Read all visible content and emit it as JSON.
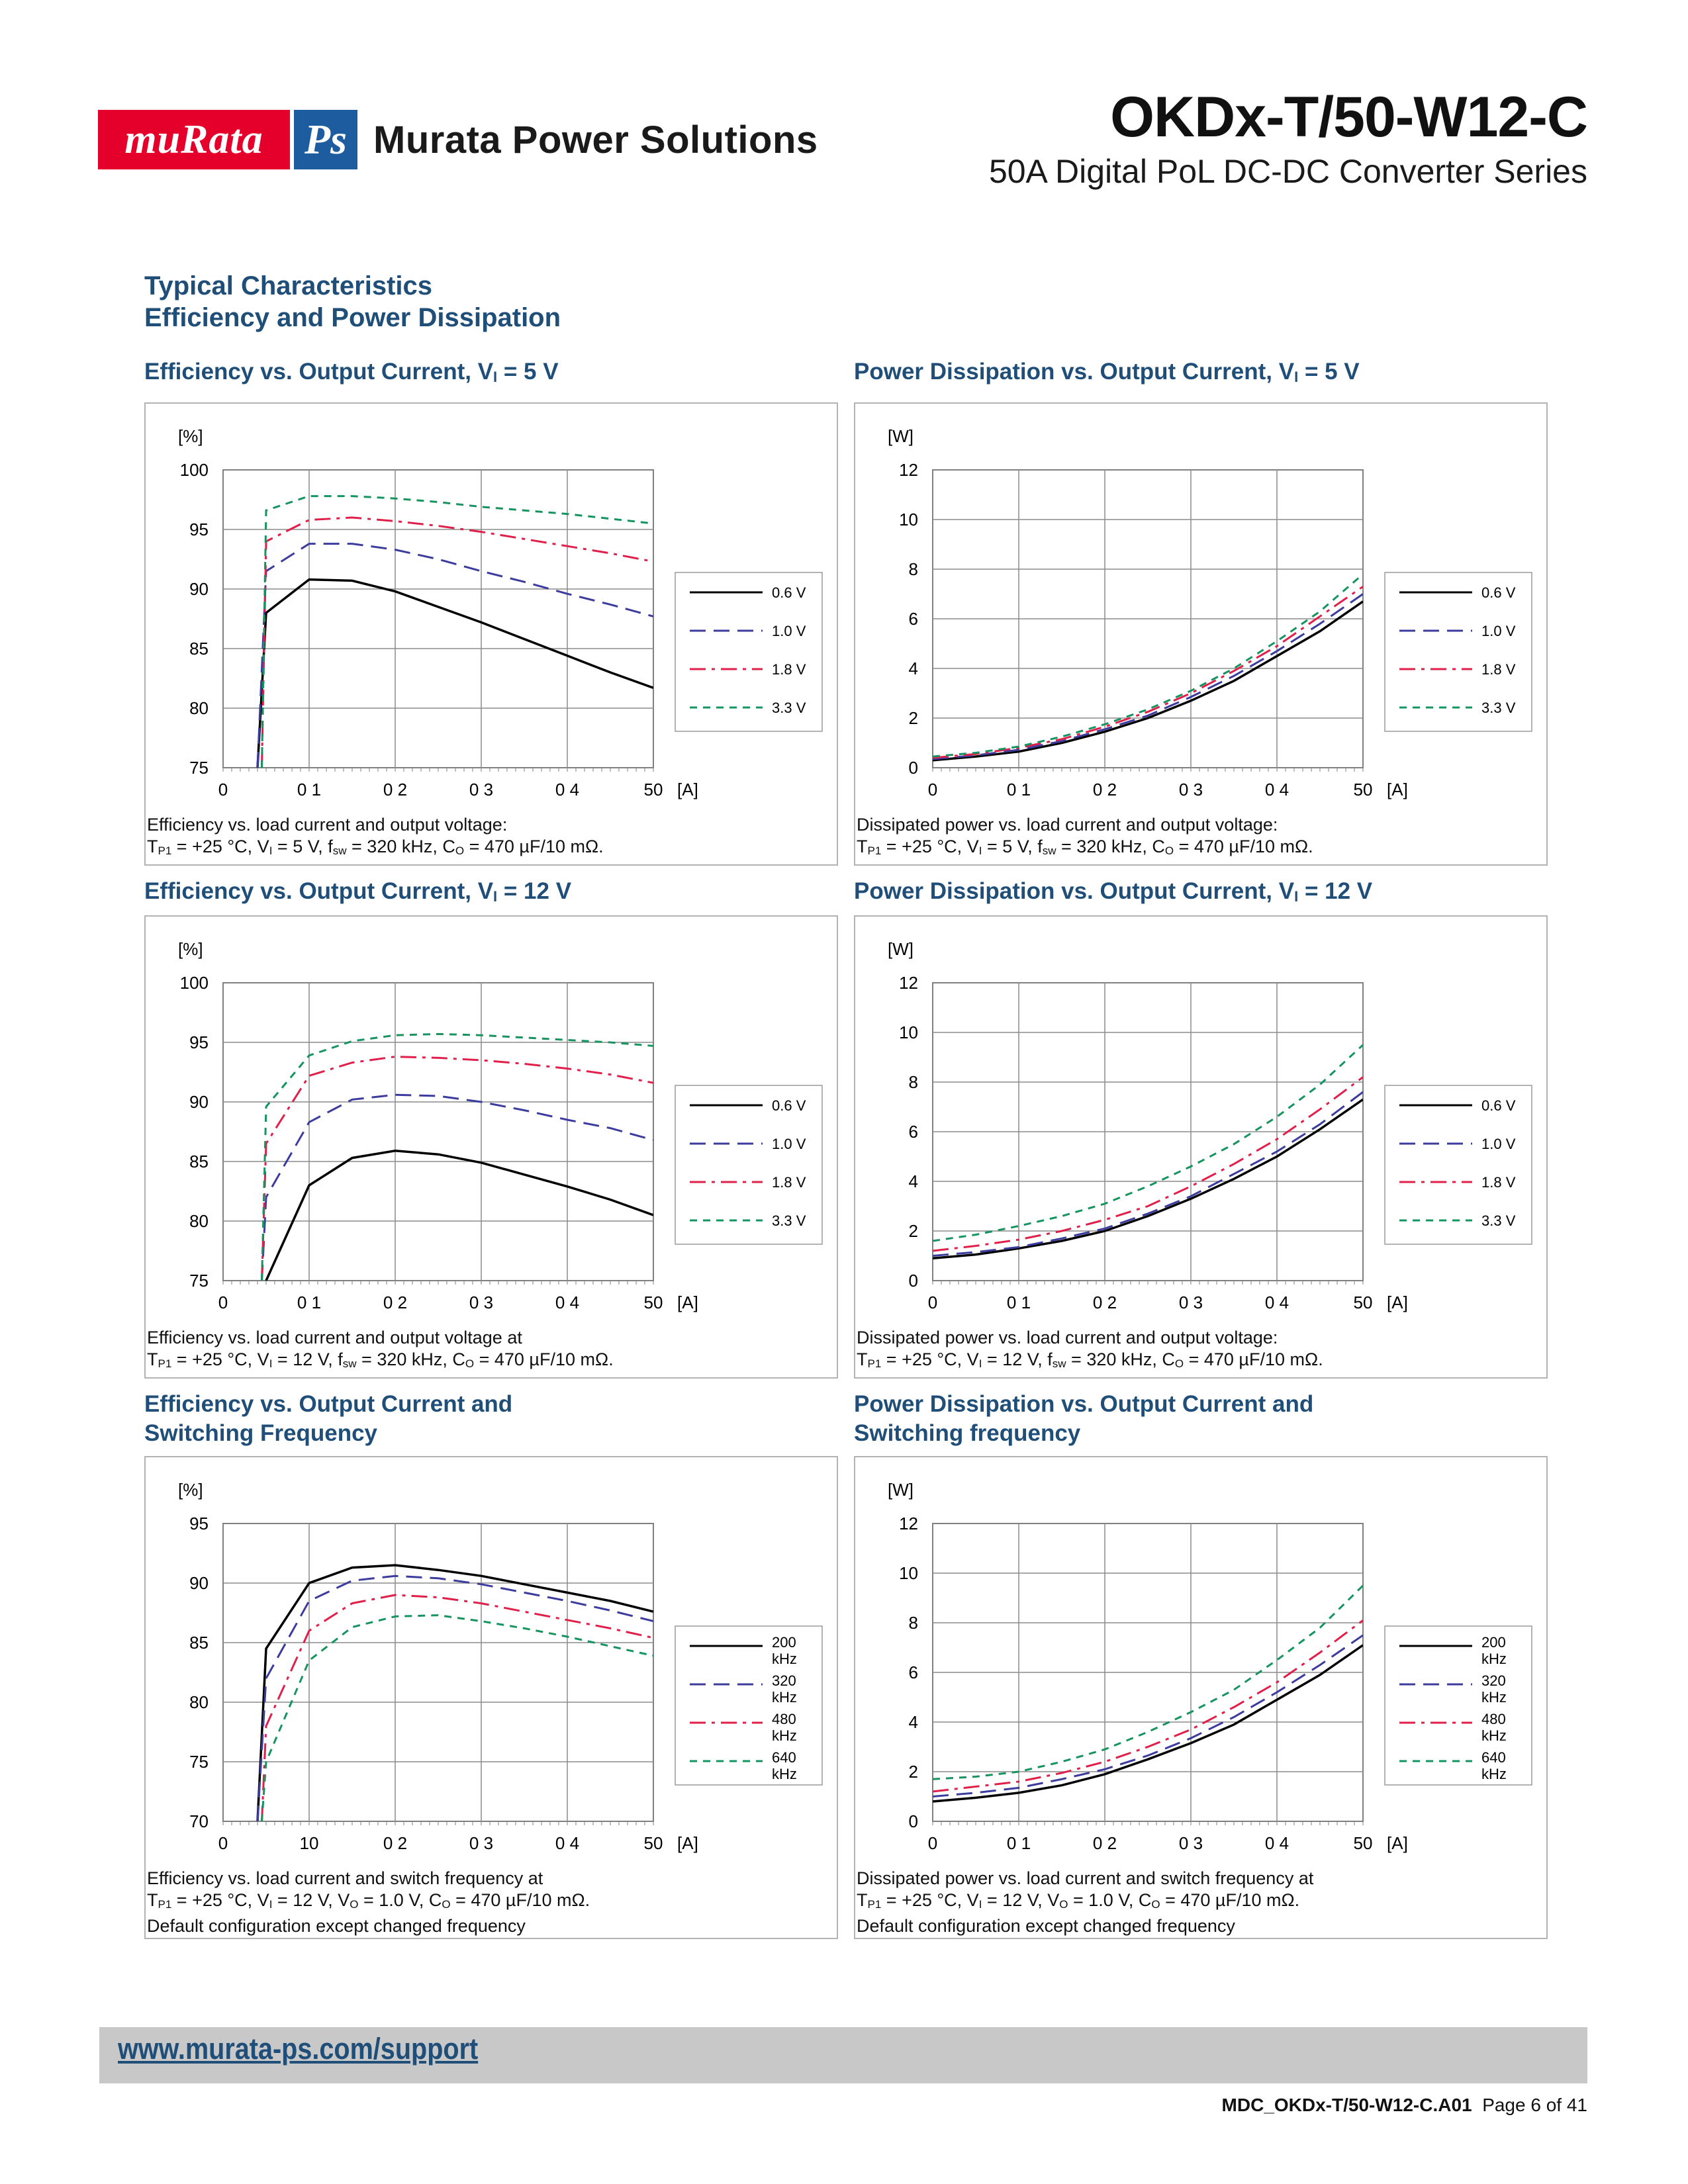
{
  "header": {
    "logo_murata": "muRata",
    "logo_ps": "Ps",
    "company": "Murata Power Solutions",
    "product_title": "OKDx-T/50-W12-C",
    "product_subtitle": "50A Digital PoL DC-DC Converter Series"
  },
  "section": {
    "heading1": "Typical Characteristics",
    "heading2": "Efficiency and Power Dissipation"
  },
  "panels": [
    {
      "title_lines": [
        "Efficiency vs. Output Current, V₁ = 5 V"
      ],
      "caption_lines": [
        "Efficiency vs. load current and output voltage:",
        "TP1 = +25 °C, VI = 5 V, fsw = 320 kHz, CO = 470 µF/10 mΩ."
      ]
    },
    {
      "title_lines": [
        "Power Dissipation vs. Output Current, VI = 5 V"
      ],
      "caption_lines": [
        "Dissipated power vs. load current and output voltage:",
        "TP1 = +25 °C, VI = 5 V, fsw = 320 kHz, CO = 470 µF/10 mΩ."
      ]
    },
    {
      "title_lines": [
        "Efficiency vs. Output Current, VI = 12 V"
      ],
      "caption_lines": [
        "Efficiency vs. load current and output voltage at",
        "TP1 = +25 °C, VI = 12 V, fsw = 320 kHz, CO = 470 µF/10 mΩ."
      ]
    },
    {
      "title_lines": [
        "Power Dissipation vs. Output Current, VI = 12 V"
      ],
      "caption_lines": [
        "Dissipated power vs. load current and output voltage:",
        "TP1 = +25 °C, VI = 12 V, fsw = 320 kHz, CO = 470 µF/10 mΩ."
      ]
    },
    {
      "title_lines": [
        "Efficiency vs. Output Current and",
        "Switching Frequency"
      ],
      "caption_lines": [
        "Efficiency vs. load current and switch frequency at",
        "TP1 = +25 °C, VI = 12 V, VO = 1.0 V, CO = 470 µF/10 mΩ.",
        "Default configuration except changed frequency"
      ]
    },
    {
      "title_lines": [
        "Power Dissipation vs. Output Current and",
        "Switching frequency"
      ],
      "caption_lines": [
        "Dissipated power vs. load current and switch frequency at",
        "TP1 = +25 °C, VI = 12 V, VO = 1.0 V, CO = 470 µF/10 mΩ.",
        "Default configuration except changed frequency"
      ]
    }
  ],
  "styles": {
    "series_colors": [
      "#000000",
      "#3c3c9e",
      "#e0204a",
      "#159460"
    ],
    "series_dash": [
      "",
      "24,12",
      "24,9,5,9",
      "11,9"
    ]
  },
  "chart_data": [
    {
      "type": "line",
      "ylabel": "[%]",
      "xlabel": "[A]",
      "ylim": [
        75,
        100
      ],
      "xlim": [
        0,
        50
      ],
      "yticks": [
        "75",
        "80",
        "85",
        "90",
        "95",
        "100"
      ],
      "xticks": [
        "0",
        "0  1",
        "0  2",
        "0  3",
        "0  4",
        "50"
      ],
      "grid": true,
      "legend_position": "right",
      "series": [
        {
          "name": "0.6 V",
          "x": [
            4,
            5,
            10,
            15,
            20,
            25,
            30,
            35,
            40,
            45,
            50
          ],
          "y": [
            75,
            88,
            90.8,
            90.7,
            89.8,
            88.5,
            87.2,
            85.8,
            84.4,
            83.0,
            81.7
          ]
        },
        {
          "name": "1.0 V",
          "x": [
            4,
            5,
            10,
            15,
            20,
            25,
            30,
            35,
            40,
            45,
            50
          ],
          "y": [
            75,
            91.5,
            93.8,
            93.8,
            93.3,
            92.5,
            91.5,
            90.6,
            89.6,
            88.7,
            87.7
          ]
        },
        {
          "name": "1.8 V",
          "x": [
            4.5,
            5,
            10,
            15,
            20,
            25,
            30,
            35,
            40,
            45,
            50
          ],
          "y": [
            75,
            94,
            95.8,
            96.0,
            95.7,
            95.3,
            94.8,
            94.2,
            93.6,
            93.0,
            92.3
          ]
        },
        {
          "name": "3.3 V",
          "x": [
            4.5,
            5,
            10,
            15,
            20,
            25,
            30,
            35,
            40,
            45,
            50
          ],
          "y": [
            75,
            96.6,
            97.8,
            97.8,
            97.6,
            97.3,
            96.9,
            96.6,
            96.3,
            95.9,
            95.5
          ]
        }
      ]
    },
    {
      "type": "line",
      "ylabel": "[W]",
      "xlabel": "[A]",
      "ylim": [
        0,
        12
      ],
      "xlim": [
        0,
        50
      ],
      "yticks": [
        "0",
        "2",
        "4",
        "6",
        "8",
        "10",
        "12"
      ],
      "xticks": [
        "0",
        "0  1",
        "0  2",
        "0  3",
        "0  4",
        "50"
      ],
      "grid": true,
      "legend_position": "right",
      "series": [
        {
          "name": "0.6 V",
          "x": [
            0,
            5,
            10,
            15,
            20,
            25,
            30,
            35,
            40,
            45,
            50
          ],
          "y": [
            0.3,
            0.45,
            0.65,
            1.0,
            1.45,
            2.0,
            2.7,
            3.5,
            4.5,
            5.5,
            6.7
          ]
        },
        {
          "name": "1.0 V",
          "x": [
            0,
            5,
            10,
            15,
            20,
            25,
            30,
            35,
            40,
            45,
            50
          ],
          "y": [
            0.35,
            0.5,
            0.72,
            1.07,
            1.55,
            2.1,
            2.85,
            3.7,
            4.7,
            5.8,
            7.0
          ]
        },
        {
          "name": "1.8 V",
          "x": [
            0,
            5,
            10,
            15,
            20,
            25,
            30,
            35,
            40,
            45,
            50
          ],
          "y": [
            0.4,
            0.55,
            0.8,
            1.15,
            1.65,
            2.25,
            3.0,
            3.9,
            4.9,
            6.1,
            7.3
          ]
        },
        {
          "name": "3.3 V",
          "x": [
            0,
            5,
            10,
            15,
            20,
            25,
            30,
            35,
            40,
            45,
            50
          ],
          "y": [
            0.45,
            0.6,
            0.85,
            1.25,
            1.75,
            2.35,
            3.1,
            4.0,
            5.1,
            6.3,
            7.8
          ]
        }
      ]
    },
    {
      "type": "line",
      "ylabel": "[%]",
      "xlabel": "[A]",
      "ylim": [
        75,
        100
      ],
      "xlim": [
        0,
        50
      ],
      "yticks": [
        "75",
        "80",
        "85",
        "90",
        "95",
        "100"
      ],
      "xticks": [
        "0",
        "0  1",
        "0  2",
        "0  3",
        "0  4",
        "50"
      ],
      "grid": true,
      "legend_position": "right",
      "series": [
        {
          "name": "0.6 V",
          "x": [
            5,
            10,
            15,
            20,
            25,
            30,
            35,
            40,
            45,
            50
          ],
          "y": [
            75,
            83,
            85.3,
            85.9,
            85.6,
            84.9,
            83.9,
            82.9,
            81.8,
            80.5
          ]
        },
        {
          "name": "1.0 V",
          "x": [
            4.5,
            5,
            10,
            15,
            20,
            25,
            30,
            35,
            40,
            45,
            50
          ],
          "y": [
            75,
            82,
            88.3,
            90.2,
            90.6,
            90.5,
            90.0,
            89.3,
            88.5,
            87.8,
            86.8
          ]
        },
        {
          "name": "1.8 V",
          "x": [
            4.5,
            5,
            10,
            15,
            20,
            25,
            30,
            35,
            40,
            45,
            50
          ],
          "y": [
            75,
            86.5,
            92.2,
            93.3,
            93.8,
            93.7,
            93.5,
            93.2,
            92.8,
            92.3,
            91.6
          ]
        },
        {
          "name": "3.3 V",
          "x": [
            4.5,
            5,
            10,
            15,
            20,
            25,
            30,
            35,
            40,
            45,
            50
          ],
          "y": [
            75,
            89.6,
            93.9,
            95.1,
            95.6,
            95.7,
            95.6,
            95.4,
            95.2,
            95.0,
            94.7
          ]
        }
      ]
    },
    {
      "type": "line",
      "ylabel": "[W]",
      "xlabel": "[A]",
      "ylim": [
        0,
        12
      ],
      "xlim": [
        0,
        50
      ],
      "yticks": [
        "0",
        "2",
        "4",
        "6",
        "8",
        "10",
        "12"
      ],
      "xticks": [
        "0",
        "0  1",
        "0  2",
        "0  3",
        "0  4",
        "50"
      ],
      "grid": true,
      "legend_position": "right",
      "series": [
        {
          "name": "0.6 V",
          "x": [
            0,
            5,
            10,
            15,
            20,
            25,
            30,
            35,
            40,
            45,
            50
          ],
          "y": [
            0.9,
            1.05,
            1.3,
            1.6,
            2.0,
            2.6,
            3.3,
            4.1,
            5.0,
            6.1,
            7.3
          ]
        },
        {
          "name": "1.0 V",
          "x": [
            0,
            5,
            10,
            15,
            20,
            25,
            30,
            35,
            40,
            45,
            50
          ],
          "y": [
            1.0,
            1.15,
            1.35,
            1.7,
            2.1,
            2.7,
            3.4,
            4.3,
            5.2,
            6.3,
            7.6
          ]
        },
        {
          "name": "1.8 V",
          "x": [
            0,
            5,
            10,
            15,
            20,
            25,
            30,
            35,
            40,
            45,
            50
          ],
          "y": [
            1.2,
            1.4,
            1.65,
            2.0,
            2.45,
            3.0,
            3.8,
            4.7,
            5.7,
            6.9,
            8.2
          ]
        },
        {
          "name": "3.3 V",
          "x": [
            0,
            5,
            10,
            15,
            20,
            25,
            30,
            35,
            40,
            45,
            50
          ],
          "y": [
            1.6,
            1.85,
            2.2,
            2.6,
            3.1,
            3.8,
            4.6,
            5.5,
            6.6,
            7.9,
            9.5
          ]
        }
      ]
    },
    {
      "type": "line",
      "ylabel": "[%]",
      "xlabel": "[A]",
      "ylim": [
        70,
        95
      ],
      "xlim": [
        0,
        50
      ],
      "yticks": [
        "70",
        "75",
        "80",
        "85",
        "90",
        "95"
      ],
      "xticks": [
        "0",
        "10",
        "0  2",
        "0  3",
        "0  4",
        "50"
      ],
      "grid": true,
      "legend_position": "right",
      "series": [
        {
          "name": "200 kHz",
          "x": [
            4,
            5,
            10,
            15,
            20,
            25,
            30,
            35,
            40,
            45,
            50
          ],
          "y": [
            70,
            84.5,
            90.0,
            91.3,
            91.5,
            91.1,
            90.6,
            89.9,
            89.2,
            88.5,
            87.6
          ]
        },
        {
          "name": "320 kHz",
          "x": [
            4,
            5,
            10,
            15,
            20,
            25,
            30,
            35,
            40,
            45,
            50
          ],
          "y": [
            70,
            82,
            88.5,
            90.2,
            90.6,
            90.4,
            89.9,
            89.2,
            88.5,
            87.7,
            86.8
          ]
        },
        {
          "name": "480 kHz",
          "x": [
            4.5,
            5,
            10,
            15,
            20,
            25,
            30,
            35,
            40,
            45,
            50
          ],
          "y": [
            70,
            78,
            86.0,
            88.3,
            89.0,
            88.8,
            88.3,
            87.6,
            86.9,
            86.2,
            85.4
          ]
        },
        {
          "name": "640 kHz",
          "x": [
            4.5,
            5,
            10,
            15,
            20,
            25,
            30,
            35,
            40,
            45,
            50
          ],
          "y": [
            70,
            75,
            83.5,
            86.3,
            87.2,
            87.3,
            86.8,
            86.2,
            85.5,
            84.7,
            83.9
          ]
        }
      ]
    },
    {
      "type": "line",
      "ylabel": "[W]",
      "xlabel": "[A]",
      "ylim": [
        0,
        12
      ],
      "xlim": [
        0,
        50
      ],
      "yticks": [
        "0",
        "2",
        "4",
        "6",
        "8",
        "10",
        "12"
      ],
      "xticks": [
        "0",
        "0  1",
        "0  2",
        "0  3",
        "0  4",
        "50"
      ],
      "grid": true,
      "legend_position": "right",
      "series": [
        {
          "name": "200 kHz",
          "x": [
            0,
            5,
            10,
            15,
            20,
            25,
            30,
            35,
            40,
            45,
            50
          ],
          "y": [
            0.8,
            0.95,
            1.15,
            1.45,
            1.9,
            2.5,
            3.15,
            3.9,
            4.9,
            5.9,
            7.1
          ]
        },
        {
          "name": "320 kHz",
          "x": [
            0,
            5,
            10,
            15,
            20,
            25,
            30,
            35,
            40,
            45,
            50
          ],
          "y": [
            1.0,
            1.15,
            1.35,
            1.7,
            2.1,
            2.65,
            3.35,
            4.2,
            5.2,
            6.3,
            7.5
          ]
        },
        {
          "name": "480 kHz",
          "x": [
            0,
            5,
            10,
            15,
            20,
            25,
            30,
            35,
            40,
            45,
            50
          ],
          "y": [
            1.2,
            1.4,
            1.6,
            1.95,
            2.4,
            3.0,
            3.7,
            4.6,
            5.6,
            6.8,
            8.1
          ]
        },
        {
          "name": "640 kHz",
          "x": [
            0,
            5,
            10,
            15,
            20,
            25,
            30,
            35,
            40,
            45,
            50
          ],
          "y": [
            1.7,
            1.8,
            2.0,
            2.4,
            2.9,
            3.6,
            4.4,
            5.3,
            6.5,
            7.8,
            9.5
          ]
        }
      ]
    }
  ],
  "footer": {
    "link": "www.murata-ps.com/support",
    "doc_id": "MDC_OKDx-T/50-W12-C.A01",
    "page": "Page 6 of 41"
  }
}
